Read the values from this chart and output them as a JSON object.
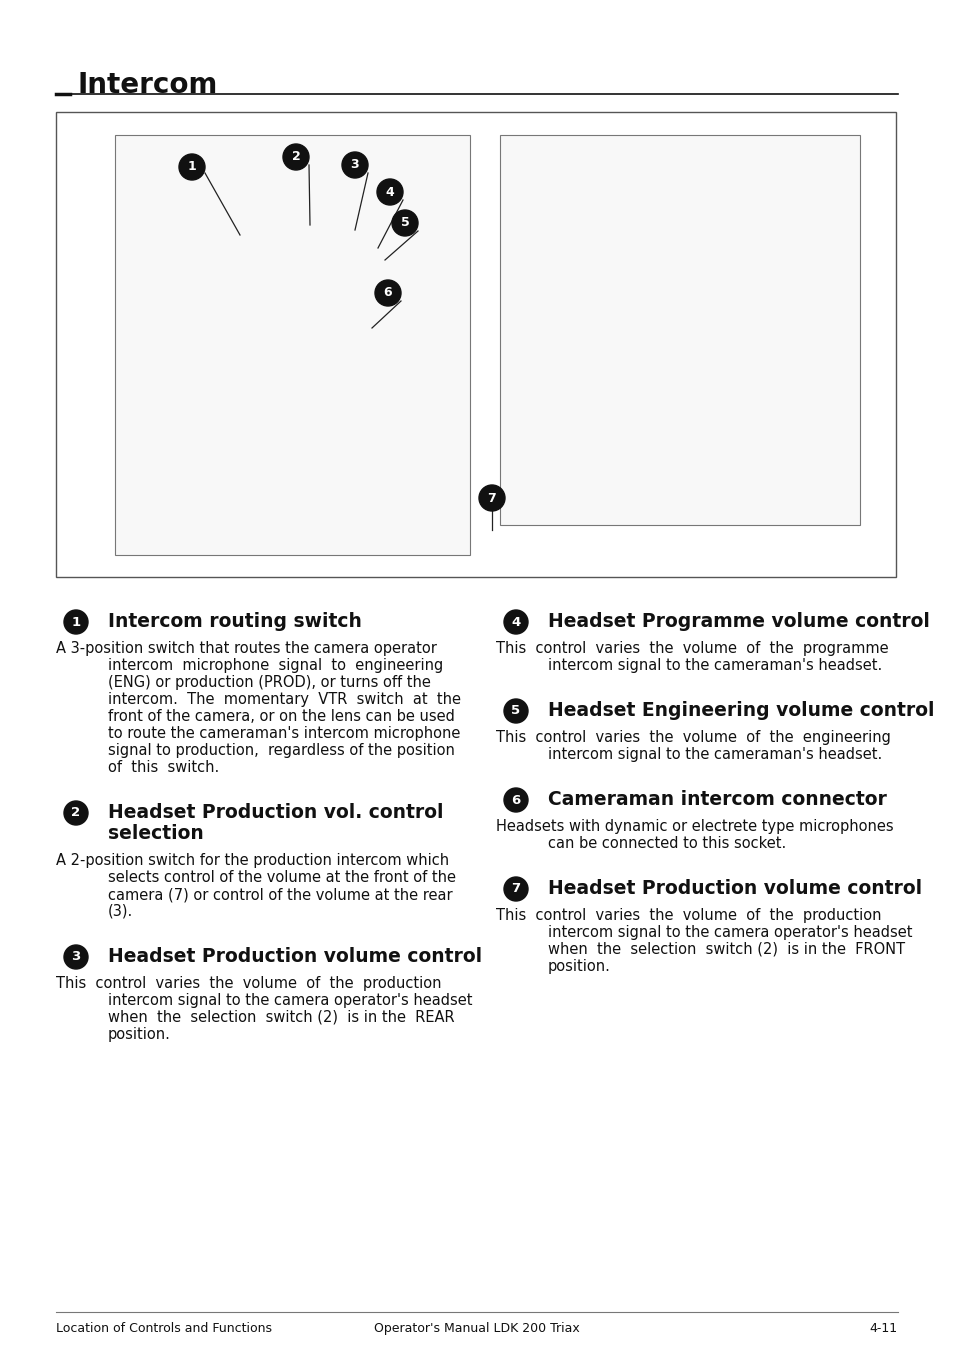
{
  "page_bg": "#ffffff",
  "title": "Intercom",
  "footer_left": "Location of Controls and Functions",
  "footer_center": "Operator's Manual LDK 200 Triax",
  "footer_right": "4-11",
  "items_left": [
    {
      "number": "1",
      "heading": "Intercom routing switch",
      "body": [
        [
          "A 3-position switch that routes the camera operator",
          false
        ],
        [
          "intercom  microphone  signal  to  engineering",
          true
        ],
        [
          "(ENG) or production (PROD), or turns off the",
          true
        ],
        [
          "intercom.  The  momentary  VTR  switch  at  the",
          true
        ],
        [
          "front of the camera, or on the lens can be used",
          true
        ],
        [
          "to route the cameraman's intercom microphone",
          true
        ],
        [
          "signal to production,  regardless of the position",
          true
        ],
        [
          "of  this  switch.",
          true
        ]
      ]
    },
    {
      "number": "2",
      "heading": "Headset Production vol. control\nselection",
      "body": [
        [
          "A 2-position switch for the production intercom which",
          false
        ],
        [
          "selects control of the volume at the front of the",
          true
        ],
        [
          "camera (7) or control of the volume at the rear",
          true
        ],
        [
          "(3).",
          true
        ]
      ]
    },
    {
      "number": "3",
      "heading": "Headset Production volume control",
      "body": [
        [
          "This  control  varies  the  volume  of  the  production",
          false
        ],
        [
          "intercom signal to the camera operator's headset",
          true
        ],
        [
          "when  the  selection  switch (2)  is in the  REAR",
          true
        ],
        [
          "position.",
          true
        ]
      ]
    }
  ],
  "items_right": [
    {
      "number": "4",
      "heading": "Headset Programme volume control",
      "body": [
        [
          "This  control  varies  the  volume  of  the  programme",
          false
        ],
        [
          "intercom signal to the cameraman's headset.",
          true
        ]
      ]
    },
    {
      "number": "5",
      "heading": "Headset Engineering volume control",
      "body": [
        [
          "This  control  varies  the  volume  of  the  engineering",
          false
        ],
        [
          "intercom signal to the cameraman's headset.",
          true
        ]
      ]
    },
    {
      "number": "6",
      "heading": "Cameraman intercom connector",
      "body": [
        [
          "Headsets with dynamic or electrete type microphones",
          false
        ],
        [
          "can be connected to this socket.",
          true
        ]
      ]
    },
    {
      "number": "7",
      "heading": "Headset Production volume control",
      "body": [
        [
          "This  control  varies  the  volume  of  the  production",
          false
        ],
        [
          "intercom signal to the camera operator's headset",
          true
        ],
        [
          "when  the  selection  switch (2)  is in the  FRONT",
          true
        ],
        [
          "position.",
          true
        ]
      ]
    }
  ]
}
